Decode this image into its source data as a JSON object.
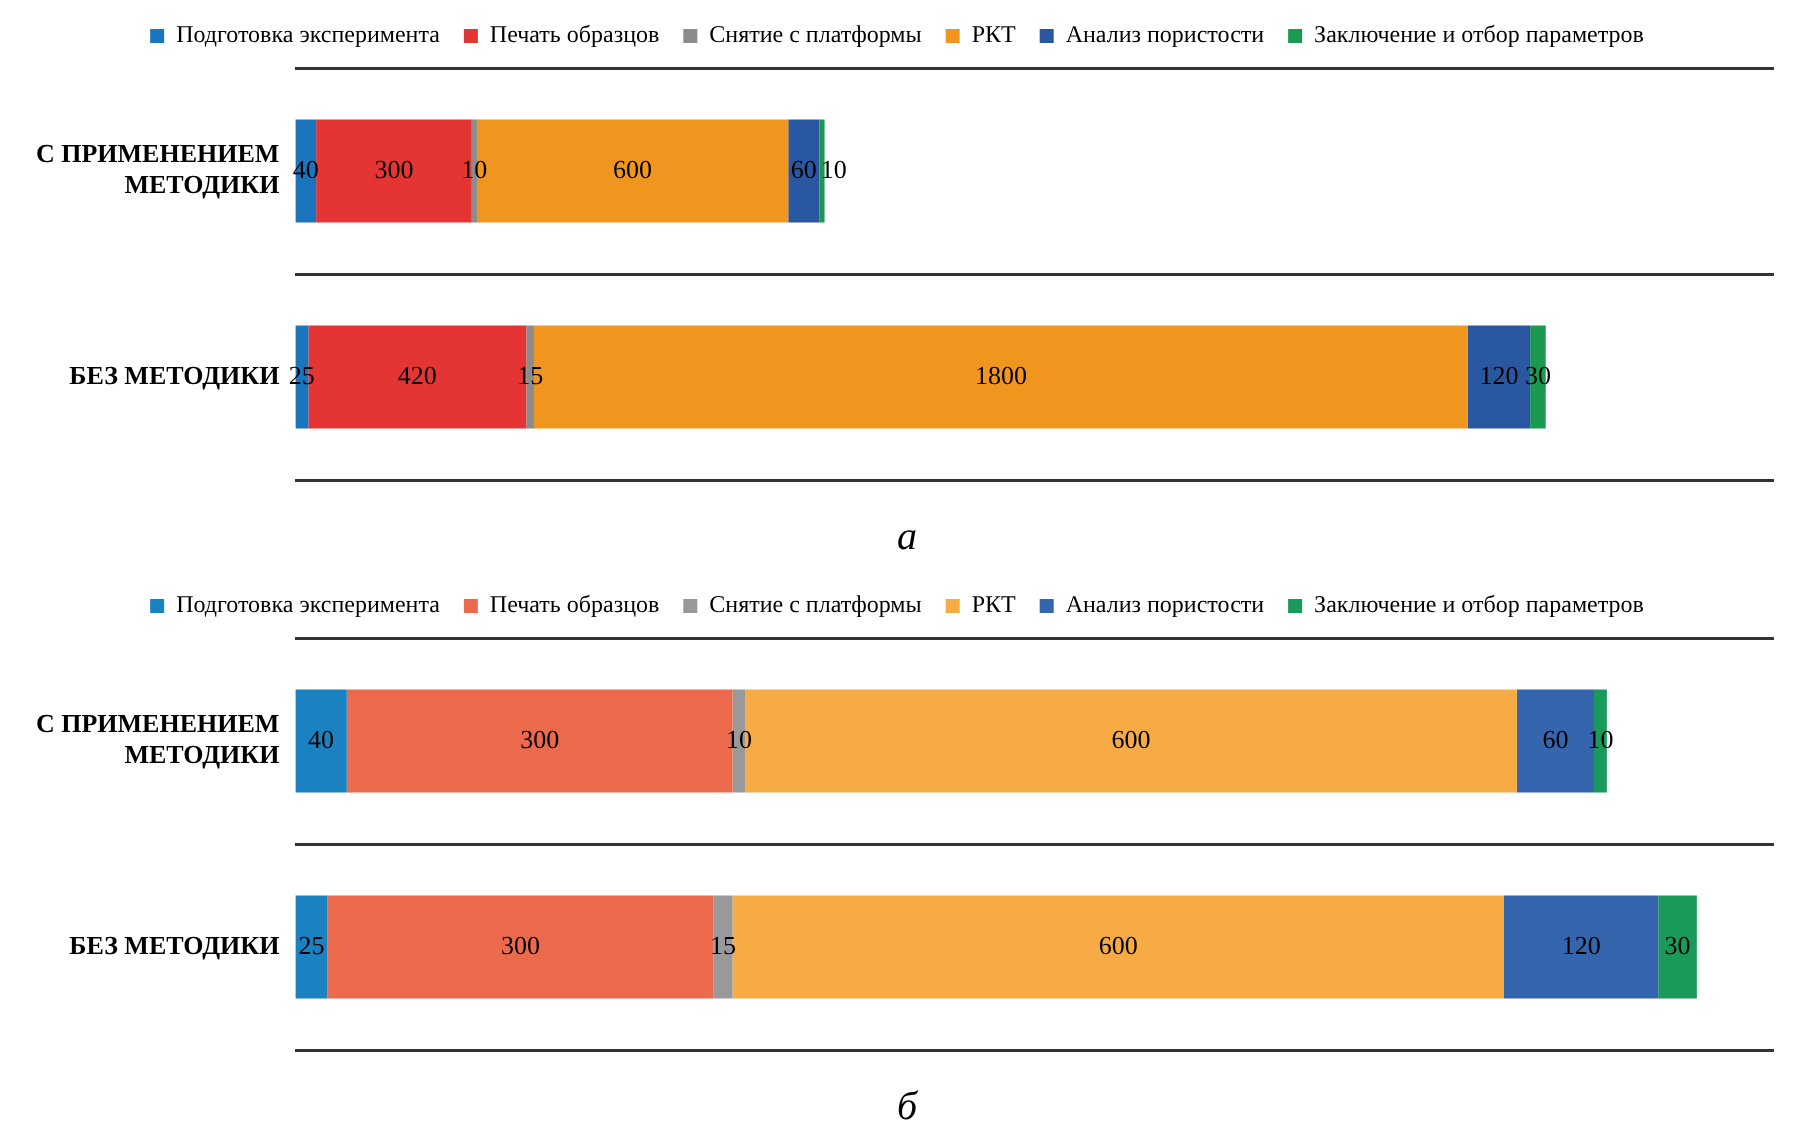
{
  "chart_data": [
    {
      "type": "bar",
      "orientation": "horizontal",
      "stacked": true,
      "data_labels": true,
      "legend": "top",
      "grid": "y",
      "tick_labels": "y",
      "xlim": [
        0,
        2850
      ],
      "categories": [
        "С ПРИМЕНЕНИЕМ МЕТОДИКИ",
        "БЕЗ МЕТОДИКИ"
      ],
      "series": [
        {
          "name": "Подготовка эксперимента",
          "color": "#1a75bc",
          "values": [
            40,
            25
          ]
        },
        {
          "name": "Печать образцов",
          "color": "#e53434",
          "values": [
            300,
            420
          ]
        },
        {
          "name": "Снятие с платформы",
          "color": "#8c8c8c",
          "values": [
            10,
            15
          ]
        },
        {
          "name": "РКТ",
          "color": "#f0961e",
          "values": [
            600,
            1800
          ]
        },
        {
          "name": "Анализ пористости",
          "color": "#2a58a0",
          "values": [
            60,
            120
          ]
        },
        {
          "name": "Заключение и отбор параметров",
          "color": "#1a9a50",
          "values": [
            10,
            30
          ]
        }
      ],
      "annotations": [
        "а"
      ]
    },
    {
      "type": "bar",
      "orientation": "horizontal",
      "stacked": true,
      "data_labels": true,
      "legend": "top",
      "grid": "y",
      "tick_labels": "y",
      "xlim": [
        0,
        1150
      ],
      "categories": [
        "С ПРИМЕНЕНИЕМ МЕТОДИКИ",
        "БЕЗ МЕТОДИКИ"
      ],
      "series": [
        {
          "name": "Подготовка эксперимента",
          "color": "#1a82c0",
          "values": [
            40,
            25
          ]
        },
        {
          "name": "Печать образцов",
          "color": "#ec6a4c",
          "values": [
            300,
            300
          ]
        },
        {
          "name": "Снятие с платформы",
          "color": "#999999",
          "values": [
            10,
            15
          ]
        },
        {
          "name": "РКТ",
          "color": "#f6ab45",
          "values": [
            600,
            600
          ]
        },
        {
          "name": "Анализ пористости",
          "color": "#3566ad",
          "values": [
            60,
            120
          ]
        },
        {
          "name": "Заключение и отбор параметров",
          "color": "#1a9a5a",
          "values": [
            10,
            30
          ]
        }
      ],
      "annotations": [
        "б"
      ]
    }
  ]
}
